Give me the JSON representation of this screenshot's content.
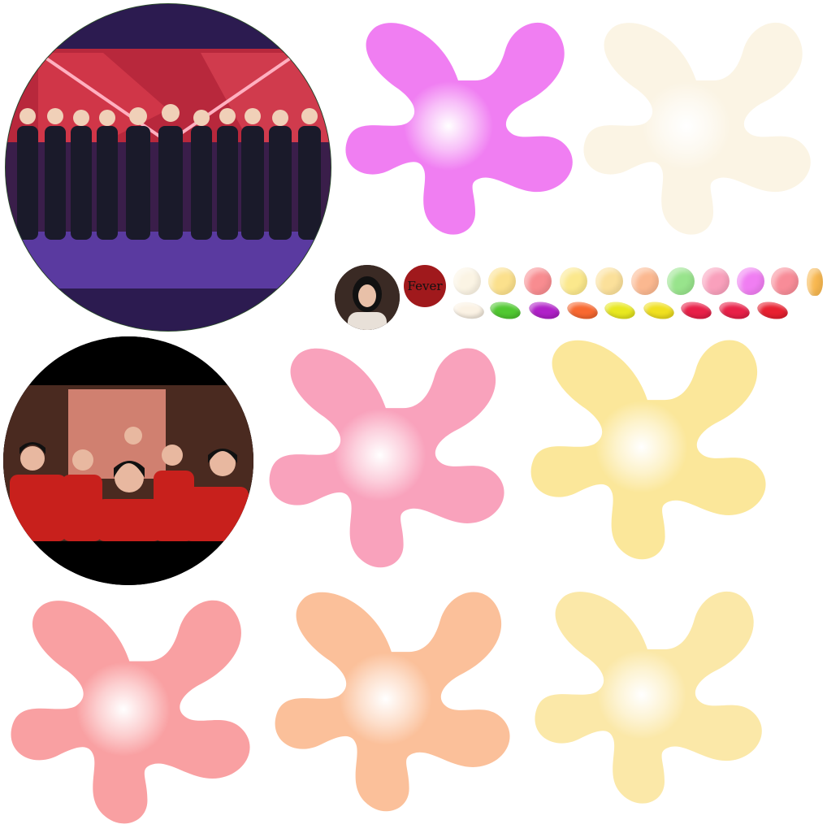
{
  "photos": {
    "stage_group": {
      "icon": "group-on-stage-photo"
    },
    "red_group": {
      "icon": "group-in-red-photo"
    },
    "portrait": {
      "icon": "girl-portrait-photo"
    },
    "fever_logo": {
      "text": "Fever",
      "color": "#a0191c"
    }
  },
  "splats": [
    {
      "name": "splat-magenta",
      "color": "#f07ef2"
    },
    {
      "name": "splat-cream",
      "color": "#fbf4e4"
    },
    {
      "name": "splat-pink",
      "color": "#f9a2bc"
    },
    {
      "name": "splat-yellow-1",
      "color": "#fbe79a"
    },
    {
      "name": "splat-salmon",
      "color": "#f9a0a2"
    },
    {
      "name": "splat-peach",
      "color": "#fbc09a"
    },
    {
      "name": "splat-yellow-2",
      "color": "#fbe8a8"
    }
  ],
  "palette": {
    "dots": [
      "#fbf4e4",
      "#fbe08c",
      "#f88c90",
      "#fbe88c",
      "#fbe09a",
      "#fbb890",
      "#98e48c",
      "#f9a0bc",
      "#f07ef2",
      "#f88c98",
      "#f8b850"
    ],
    "beans": [
      "#fbf2e4",
      "#50c830",
      "#b020c8",
      "#f86830",
      "#e8e820",
      "#f0e020",
      "#e82048",
      "#e82048",
      "#e82030"
    ]
  }
}
